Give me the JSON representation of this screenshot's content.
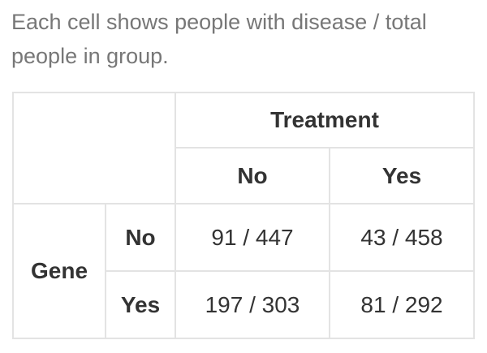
{
  "caption": "Each cell shows people with disease / total people in group.",
  "table": {
    "col_group_label": "Treatment",
    "row_group_label": "Gene",
    "col_labels": [
      "No",
      "Yes"
    ],
    "rows": [
      {
        "label": "No",
        "cells": [
          "91 / 447",
          "43 / 458"
        ]
      },
      {
        "label": "Yes",
        "cells": [
          "197 / 303",
          "81 / 292"
        ]
      }
    ]
  }
}
